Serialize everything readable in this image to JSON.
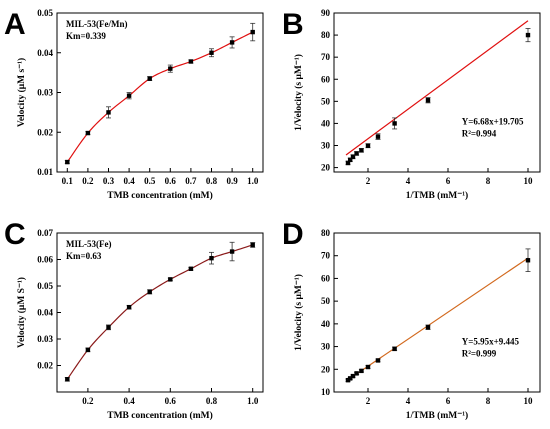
{
  "chart_data": [
    {
      "type": "scatter",
      "panel": "A",
      "xlabel": "TMB concentration (mM)",
      "ylabel": "Velocity (μM s⁻¹)",
      "xlim": [
        0.05,
        1.05
      ],
      "ylim": [
        0.01,
        0.05
      ],
      "xticks": [
        0.1,
        0.2,
        0.3,
        0.4,
        0.5,
        0.6,
        0.7,
        0.8,
        0.9,
        1.0
      ],
      "xtick_labels": [
        "0.1",
        "0.2",
        "0.3",
        "0.4",
        "0.5",
        "0.6",
        "0.7",
        "0.8",
        "0.9",
        "1.0"
      ],
      "yticks": [
        0.01,
        0.02,
        0.03,
        0.04,
        0.05
      ],
      "ytick_labels": [
        "0.01",
        "0.02",
        "0.03",
        "0.04",
        "0.05"
      ],
      "annotations": [
        "MIL-53(Fe/Mn)",
        "Km=0.339"
      ],
      "fit": "michaelis-menten",
      "fit_color": "#e01010",
      "marker_color": "#000000",
      "x": [
        0.1,
        0.2,
        0.3,
        0.4,
        0.5,
        0.6,
        0.7,
        0.8,
        0.9,
        1.0
      ],
      "y": [
        0.0125,
        0.0198,
        0.025,
        0.0292,
        0.0335,
        0.036,
        0.0378,
        0.04,
        0.0426,
        0.0452
      ],
      "err": [
        0.0004,
        0.0004,
        0.0014,
        0.0008,
        0.0005,
        0.0009,
        0.0004,
        0.001,
        0.0014,
        0.0022
      ]
    },
    {
      "type": "scatter",
      "panel": "B",
      "xlabel": "1/TMB (mM⁻¹)",
      "ylabel": "1/Velocity (s μM⁻¹)",
      "xlim": [
        0.3,
        10.6
      ],
      "ylim": [
        18,
        90
      ],
      "xticks": [
        2,
        4,
        6,
        8,
        10
      ],
      "xtick_labels": [
        "2",
        "4",
        "6",
        "8",
        "10"
      ],
      "yticks": [
        20,
        30,
        40,
        50,
        60,
        70,
        80,
        90
      ],
      "ytick_labels": [
        "20",
        "30",
        "40",
        "50",
        "60",
        "70",
        "80",
        "90"
      ],
      "annotations": [
        "Y=6.68x+19.705",
        "R²=0.994"
      ],
      "fit": "linear",
      "slope": 6.68,
      "intercept": 19.705,
      "fit_range": [
        0.9,
        10.0
      ],
      "fit_color": "#e01010",
      "marker_color": "#000000",
      "x": [
        1.0,
        1.11,
        1.25,
        1.43,
        1.67,
        2.0,
        2.5,
        3.33,
        5.0,
        10.0
      ],
      "y": [
        22.1,
        23.5,
        24.9,
        26.4,
        27.8,
        29.9,
        34.0,
        40.0,
        50.5,
        80.0
      ],
      "err": [
        0.8,
        0.8,
        0.9,
        0.8,
        0.8,
        0.9,
        1.3,
        2.5,
        1.2,
        3.0
      ]
    },
    {
      "type": "scatter",
      "panel": "C",
      "xlabel": "TMB concentration (mM)",
      "ylabel": "Velocity (μM S⁻¹)",
      "xlim": [
        0.05,
        1.05
      ],
      "ylim": [
        0.01,
        0.07
      ],
      "xticks": [
        0.2,
        0.4,
        0.6,
        0.8,
        1.0
      ],
      "xtick_labels": [
        "0.2",
        "0.4",
        "0.6",
        "0.8",
        "1.0"
      ],
      "yticks": [
        0.02,
        0.03,
        0.04,
        0.05,
        0.06,
        0.07
      ],
      "ytick_labels": [
        "0.02",
        "0.03",
        "0.04",
        "0.05",
        "0.06",
        "0.07"
      ],
      "annotations": [
        "MIL-53(Fe)",
        "Km=0.63"
      ],
      "fit": "michaelis-menten",
      "fit_color": "#8b1a1a",
      "marker_color": "#000000",
      "x": [
        0.1,
        0.2,
        0.3,
        0.4,
        0.5,
        0.6,
        0.7,
        0.8,
        0.9,
        1.0
      ],
      "y": [
        0.0148,
        0.0259,
        0.0344,
        0.042,
        0.0478,
        0.0525,
        0.0565,
        0.0605,
        0.063,
        0.0655
      ],
      "err": [
        0.0007,
        0.0007,
        0.0009,
        0.0007,
        0.0008,
        0.0005,
        0.0005,
        0.0022,
        0.0035,
        0.0009
      ]
    },
    {
      "type": "scatter",
      "panel": "D",
      "xlabel": "1/TMB (mM⁻¹)",
      "ylabel": "1/Velocity (s μM⁻¹)",
      "xlim": [
        0.3,
        10.6
      ],
      "ylim": [
        10,
        80
      ],
      "xticks": [
        2,
        4,
        6,
        8,
        10
      ],
      "xtick_labels": [
        "2",
        "4",
        "6",
        "8",
        "10"
      ],
      "yticks": [
        10,
        20,
        30,
        40,
        50,
        60,
        70,
        80
      ],
      "ytick_labels": [
        "10",
        "20",
        "30",
        "40",
        "50",
        "60",
        "70",
        "80"
      ],
      "annotations": [
        "Y=5.95x+9.445",
        "R²=0.999"
      ],
      "fit": "linear",
      "slope": 5.95,
      "intercept": 9.445,
      "fit_range": [
        1.0,
        10.0
      ],
      "fit_color": "#d2691e",
      "marker_color": "#000000",
      "x": [
        1.0,
        1.11,
        1.25,
        1.43,
        1.67,
        2.0,
        2.5,
        3.33,
        5.0,
        10.0
      ],
      "y": [
        15.2,
        16.0,
        17.0,
        18.2,
        19.3,
        21.0,
        23.9,
        29.0,
        38.5,
        68.0
      ],
      "err": [
        0.5,
        0.5,
        0.5,
        0.5,
        0.5,
        0.6,
        0.6,
        0.8,
        1.0,
        5.0
      ]
    }
  ]
}
